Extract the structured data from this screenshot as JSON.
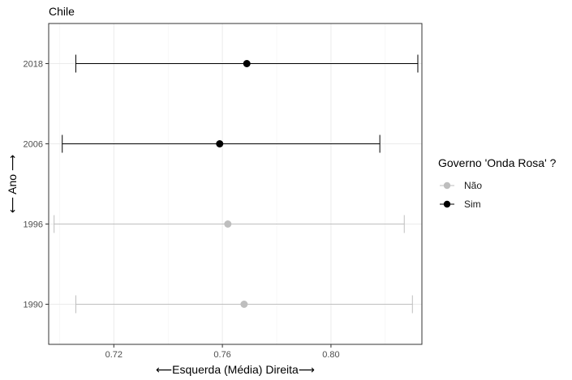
{
  "chart_data": {
    "type": "scatter",
    "title": "Chile",
    "xlabel": "⟵Esquerda (Média) Direita⟶",
    "ylabel": "⟵ Ano ⟶",
    "xlim": [
      0.696,
      0.8335
    ],
    "xticks": [
      0.72,
      0.76,
      0.8
    ],
    "xtick_labels": [
      "0.72",
      "0.76",
      "0.80"
    ],
    "categories": [
      "1990",
      "1996",
      "2006",
      "2018"
    ],
    "points": [
      {
        "year": "1990",
        "mean": 0.768,
        "lower": 0.706,
        "upper": 0.83,
        "group": "Não"
      },
      {
        "year": "1996",
        "mean": 0.762,
        "lower": 0.698,
        "upper": 0.827,
        "group": "Não"
      },
      {
        "year": "2006",
        "mean": 0.759,
        "lower": 0.701,
        "upper": 0.818,
        "group": "Sim"
      },
      {
        "year": "2018",
        "mean": 0.769,
        "lower": 0.706,
        "upper": 0.832,
        "group": "Sim"
      }
    ],
    "legend": {
      "title": "Governo 'Onda Rosa' ?",
      "position": "right",
      "entries": [
        {
          "label": "Não",
          "color": "#bebebe"
        },
        {
          "label": "Sim",
          "color": "#000000"
        }
      ]
    },
    "grid": true
  }
}
